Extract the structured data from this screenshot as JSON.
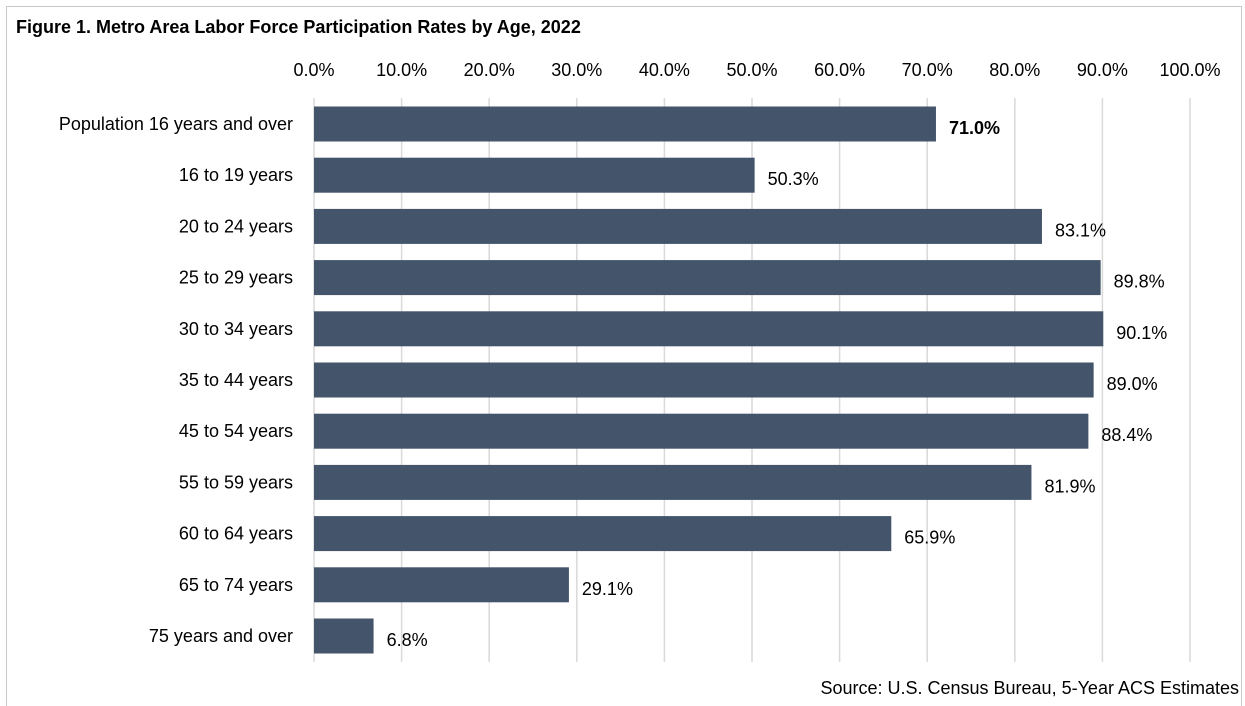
{
  "title": "Figure 1. Metro Area Labor Force Participation Rates by Age, 2022",
  "source": "Source: U.S. Census Bureau, 5-Year ACS Estimates",
  "colors": {
    "bar": "#44546a",
    "grid": "#d9d9d9",
    "text": "#000000"
  },
  "chart_data": {
    "type": "bar",
    "orientation": "horizontal",
    "title": "Figure 1. Metro Area Labor Force Participation Rates by Age, 2022",
    "xlabel": "",
    "ylabel": "",
    "xlim": [
      0,
      100
    ],
    "x_ticks": [
      "0.0%",
      "10.0%",
      "20.0%",
      "30.0%",
      "40.0%",
      "50.0%",
      "60.0%",
      "70.0%",
      "80.0%",
      "90.0%",
      "100.0%"
    ],
    "tick_values": [
      0,
      10,
      20,
      30,
      40,
      50,
      60,
      70,
      80,
      90,
      100
    ],
    "axis_position": "top",
    "grid": true,
    "categories": [
      "Population 16 years and over",
      "16 to 19 years",
      "20 to 24 years",
      "25 to 29 years",
      "30 to 34 years",
      "35 to 44 years",
      "45 to 54 years",
      "55 to 59 years",
      "60 to 64 years",
      "65 to 74 years",
      "75 years and over"
    ],
    "values": [
      71.0,
      50.3,
      83.1,
      89.8,
      90.1,
      89.0,
      88.4,
      81.9,
      65.9,
      29.1,
      6.8
    ],
    "value_labels": [
      "71.0%",
      "50.3%",
      "83.1%",
      "89.8%",
      "90.1%",
      "89.0%",
      "88.4%",
      "81.9%",
      "65.9%",
      "29.1%",
      "6.8%"
    ],
    "bold_label_index": 0
  }
}
